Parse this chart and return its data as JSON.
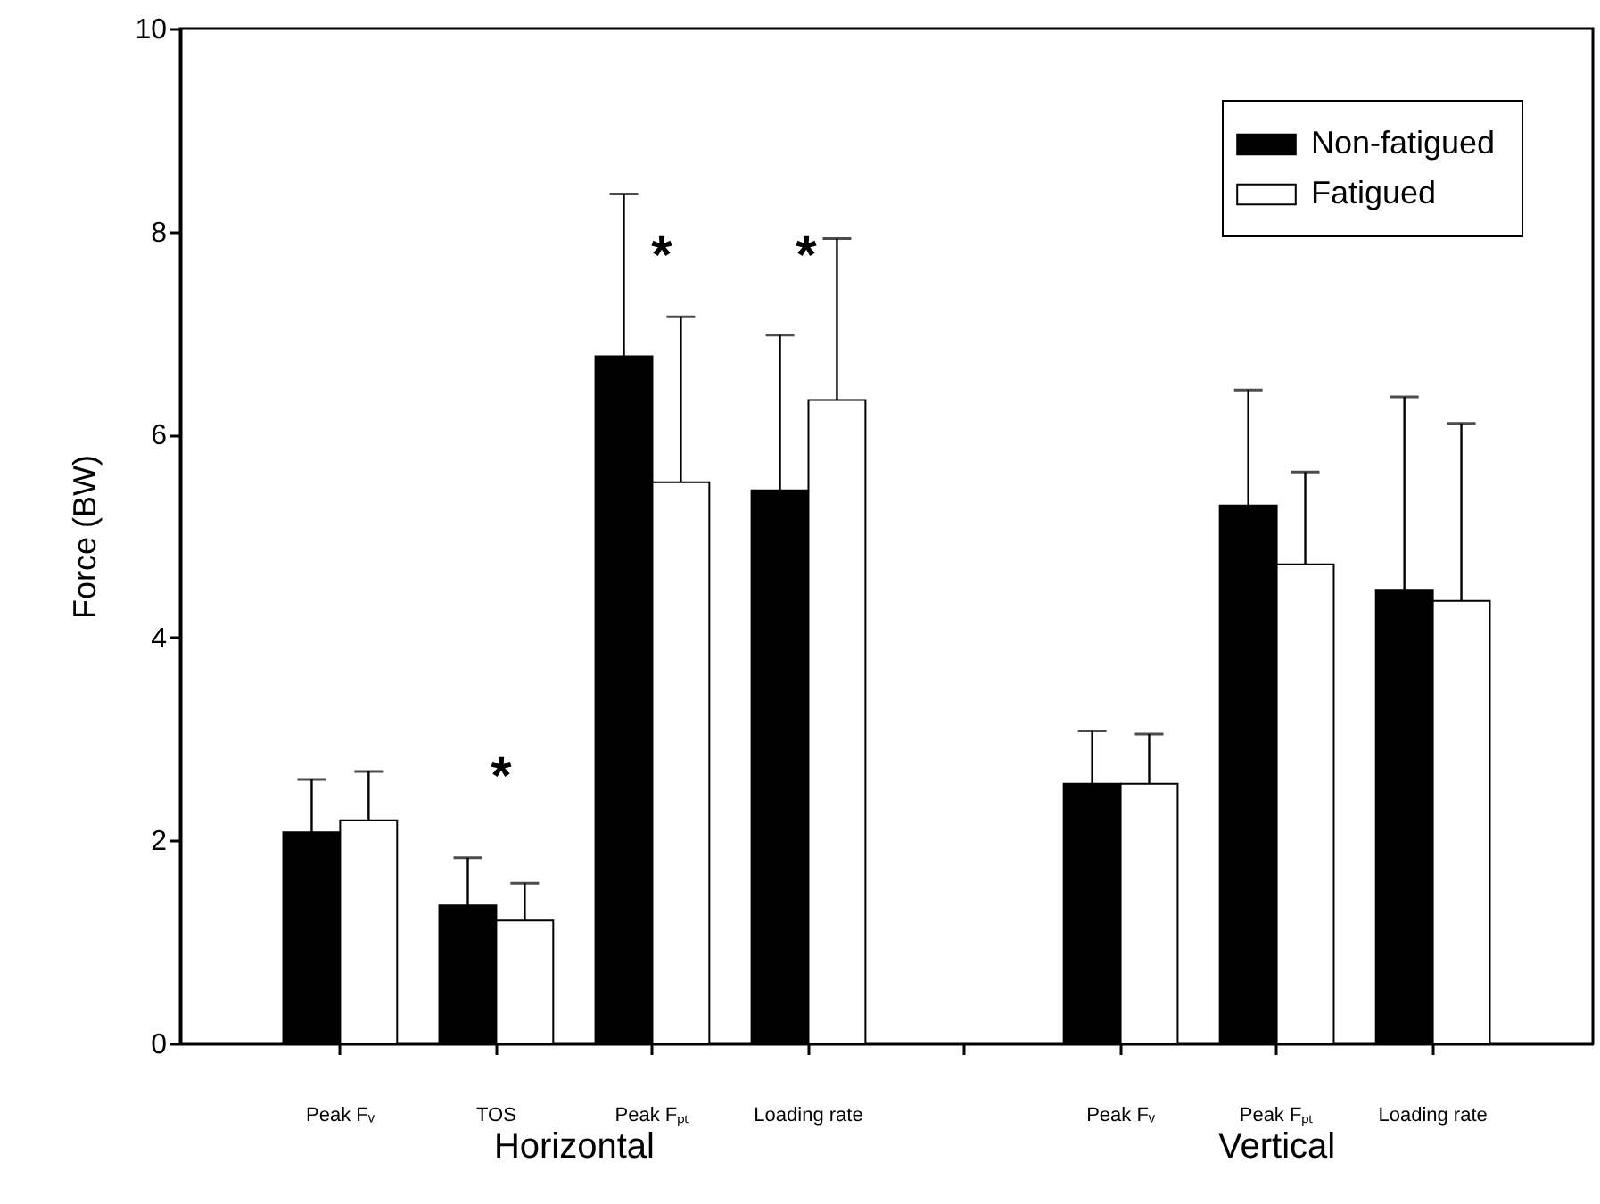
{
  "chart_data": {
    "type": "bar",
    "ylabel": "Force (BW)",
    "categories": [
      "Peak Fᵥ",
      "TOS",
      "Peak Fₚₜ",
      "Loading rate",
      null,
      "Peak Fᵥ",
      "Peak Fₚₜ",
      "Loading rate"
    ],
    "series": [
      {
        "name": "Non-fatigued",
        "color": "#000000",
        "values": [
          2.08,
          1.36,
          6.77,
          5.45,
          null,
          2.56,
          5.3,
          4.47
        ],
        "errors": [
          [
            2.08,
            2.6
          ],
          [
            1.36,
            1.83
          ],
          [
            6.77,
            8.37
          ],
          [
            5.45,
            6.98
          ],
          null,
          [
            2.56,
            3.08
          ],
          [
            5.3,
            6.44
          ],
          [
            4.47,
            6.37
          ]
        ]
      },
      {
        "name": "Fatigued",
        "color": "#ffffff",
        "values": [
          2.2,
          1.21,
          5.53,
          6.34,
          null,
          2.56,
          4.72,
          4.36
        ],
        "errors": [
          [
            2.2,
            2.68
          ],
          [
            1.21,
            1.58
          ],
          [
            5.53,
            7.16
          ],
          [
            6.34,
            7.93
          ],
          null,
          [
            2.56,
            3.05
          ],
          [
            4.72,
            5.63
          ],
          [
            4.36,
            6.11
          ]
        ]
      }
    ],
    "ylim": [
      0,
      10
    ],
    "yticks": [
      0,
      2,
      4,
      6,
      8,
      10
    ],
    "grid": false,
    "legend": "top right",
    "annotations": [
      "Horizontal",
      "Vertical",
      "*",
      "*",
      "*"
    ]
  }
}
